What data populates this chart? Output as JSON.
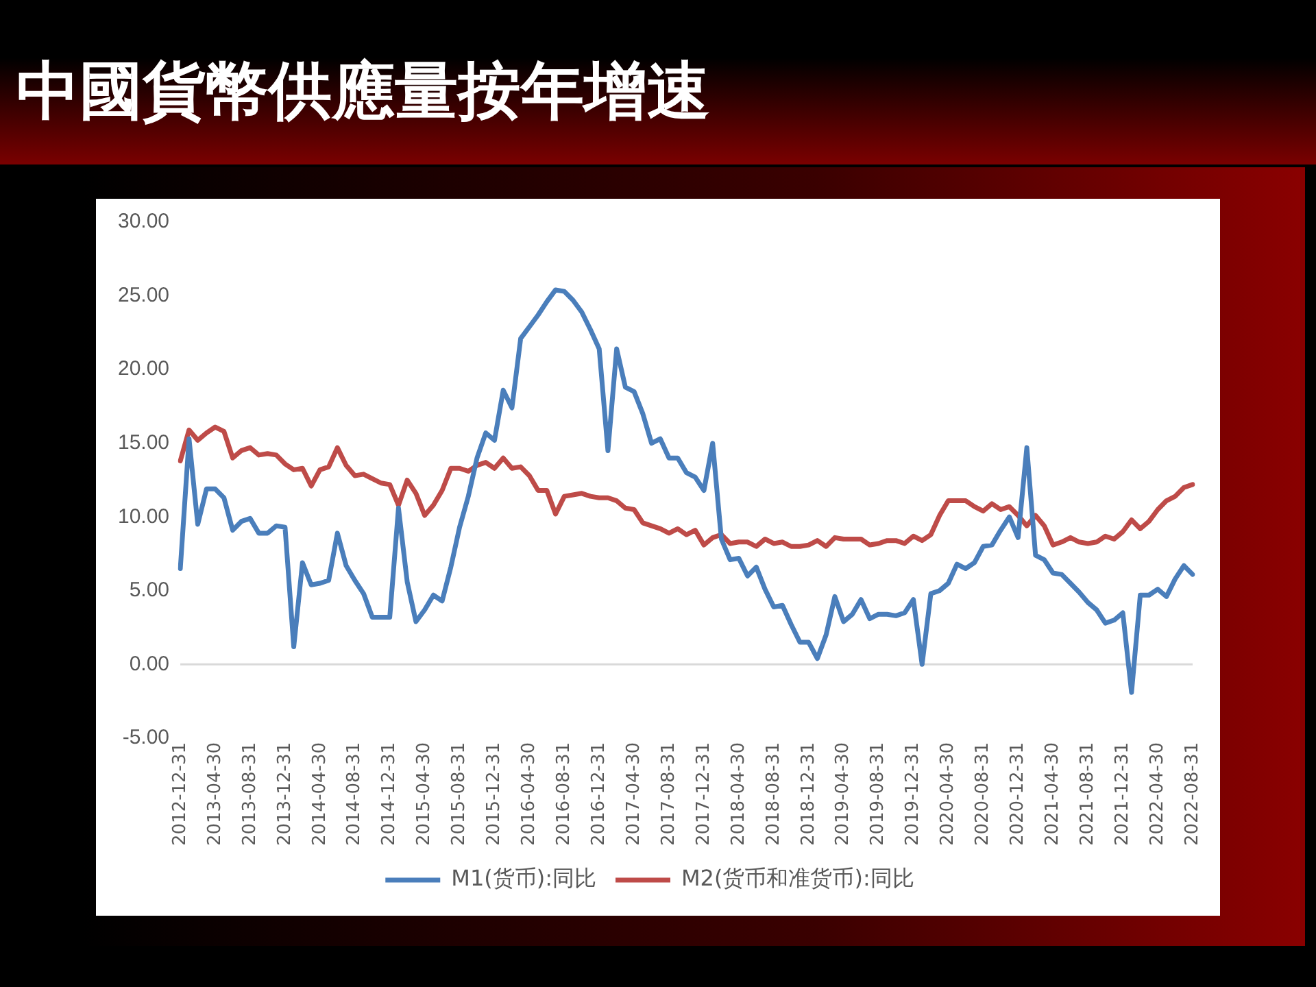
{
  "chart_data": {
    "type": "line",
    "title": "中國貨幣供應量按年增速",
    "categories": [
      "2012-12-31",
      null,
      null,
      null,
      "2013-04-30",
      null,
      null,
      null,
      "2013-08-31",
      null,
      null,
      null,
      "2013-12-31",
      null,
      null,
      null,
      "2014-04-30",
      null,
      null,
      null,
      "2014-08-31",
      null,
      null,
      null,
      "2014-12-31",
      null,
      null,
      null,
      "2015-04-30",
      null,
      null,
      null,
      "2015-08-31",
      null,
      null,
      null,
      "2015-12-31",
      null,
      null,
      null,
      "2016-04-30",
      null,
      null,
      null,
      "2016-08-31",
      null,
      null,
      null,
      "2016-12-31",
      null,
      null,
      null,
      "2017-04-30",
      null,
      null,
      null,
      "2017-08-31",
      null,
      null,
      null,
      "2017-12-31",
      null,
      null,
      null,
      "2018-04-30",
      null,
      null,
      null,
      "2018-08-31",
      null,
      null,
      null,
      "2018-12-31",
      null,
      null,
      null,
      "2019-04-30",
      null,
      null,
      null,
      "2019-08-31",
      null,
      null,
      null,
      "2019-12-31",
      null,
      null,
      null,
      "2020-04-30",
      null,
      null,
      null,
      "2020-08-31",
      null,
      null,
      null,
      "2020-12-31",
      null,
      null,
      null,
      "2021-04-30",
      null,
      null,
      null,
      "2021-08-31",
      null,
      null,
      null,
      "2021-12-31",
      null,
      null,
      null,
      "2022-04-30",
      null,
      null,
      null,
      "2022-08-31"
    ],
    "series": [
      {
        "name": "M1(货币):同比",
        "color": "#4a7ebb",
        "values": [
          6.5,
          15.3,
          9.5,
          11.9,
          11.9,
          11.3,
          9.1,
          9.7,
          9.9,
          8.9,
          8.9,
          9.4,
          9.3,
          1.2,
          6.9,
          5.4,
          5.5,
          5.7,
          8.9,
          6.7,
          5.7,
          4.8,
          3.2,
          3.2,
          3.2,
          10.6,
          5.6,
          2.9,
          3.7,
          4.7,
          4.3,
          6.6,
          9.3,
          11.4,
          14.0,
          15.7,
          15.2,
          18.6,
          17.4,
          22.1,
          22.9,
          23.7,
          24.6,
          25.4,
          25.3,
          24.7,
          23.9,
          22.7,
          21.4,
          14.5,
          21.4,
          18.8,
          18.5,
          17.0,
          15.0,
          15.3,
          14.0,
          14.0,
          13.0,
          12.7,
          11.8,
          15.0,
          8.5,
          7.1,
          7.2,
          6.0,
          6.6,
          5.1,
          3.9,
          4.0,
          2.7,
          1.5,
          1.5,
          0.4,
          2.0,
          4.6,
          2.9,
          3.4,
          4.4,
          3.1,
          3.4,
          3.4,
          3.3,
          3.5,
          4.4,
          0.0,
          4.8,
          5.0,
          5.5,
          6.8,
          6.5,
          6.9,
          8.0,
          8.1,
          9.1,
          10.0,
          8.6,
          14.7,
          7.4,
          7.1,
          6.2,
          6.1,
          5.5,
          4.9,
          4.2,
          3.7,
          2.8,
          3.0,
          3.5,
          -1.9,
          4.7,
          4.7,
          5.1,
          4.6,
          5.8,
          6.7,
          6.1
        ]
      },
      {
        "name": "M2(货币和准货币):同比",
        "color": "#be4b48",
        "values": [
          13.8,
          15.9,
          15.2,
          15.7,
          16.1,
          15.8,
          14.0,
          14.5,
          14.7,
          14.2,
          14.3,
          14.2,
          13.6,
          13.2,
          13.3,
          12.1,
          13.2,
          13.4,
          14.7,
          13.5,
          12.8,
          12.9,
          12.6,
          12.3,
          12.2,
          10.8,
          12.5,
          11.6,
          10.1,
          10.8,
          11.8,
          13.3,
          13.3,
          13.1,
          13.5,
          13.7,
          13.3,
          14.0,
          13.3,
          13.4,
          12.8,
          11.8,
          11.8,
          10.2,
          11.4,
          11.5,
          11.6,
          11.4,
          11.3,
          11.3,
          11.1,
          10.6,
          10.5,
          9.6,
          9.4,
          9.2,
          8.9,
          9.2,
          8.8,
          9.1,
          8.1,
          8.6,
          8.8,
          8.2,
          8.3,
          8.3,
          8.0,
          8.5,
          8.2,
          8.3,
          8.0,
          8.0,
          8.1,
          8.4,
          8.0,
          8.6,
          8.5,
          8.5,
          8.5,
          8.1,
          8.2,
          8.4,
          8.4,
          8.2,
          8.7,
          8.4,
          8.8,
          10.1,
          11.1,
          11.1,
          11.1,
          10.7,
          10.4,
          10.9,
          10.5,
          10.7,
          10.1,
          9.4,
          10.1,
          9.4,
          8.1,
          8.3,
          8.6,
          8.3,
          8.2,
          8.3,
          8.7,
          8.5,
          9.0,
          9.8,
          9.2,
          9.7,
          10.5,
          11.1,
          11.4,
          12.0,
          12.2
        ]
      }
    ],
    "ylim": [
      -5,
      30
    ],
    "yticks": [
      {
        "value": -5,
        "label": "-5.00"
      },
      {
        "value": 0,
        "label": "0.00"
      },
      {
        "value": 5,
        "label": "5.00"
      },
      {
        "value": 10,
        "label": "10.00"
      },
      {
        "value": 15,
        "label": "15.00"
      },
      {
        "value": 20,
        "label": "20.00"
      },
      {
        "value": 25,
        "label": "25.00"
      },
      {
        "value": 30,
        "label": "30.00"
      }
    ],
    "ref_lines": [
      {
        "axis": "y",
        "value": 0,
        "color": "#d9d9d9"
      }
    ],
    "grid": false,
    "legend": "bottom",
    "marker": "none",
    "line_style": "solid"
  }
}
